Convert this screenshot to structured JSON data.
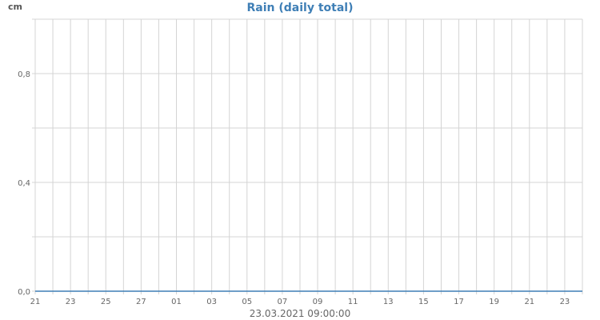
{
  "chart_data": {
    "type": "line",
    "title": "Rain (daily total)",
    "ylabel": "cm",
    "xlabel": "23.03.2021 09:00:00",
    "ylim": [
      0,
      1
    ],
    "yticks": [
      0,
      0.4,
      0.8
    ],
    "ytick_labels": [
      "0,0",
      "0,4",
      "0,8"
    ],
    "x_tick_labels": [
      "21",
      "23",
      "25",
      "27",
      "01",
      "03",
      "05",
      "07",
      "09",
      "11",
      "13",
      "15",
      "17",
      "19",
      "21",
      "23"
    ],
    "grid": true,
    "series": [
      {
        "color": "#3f7fb6",
        "x": [
          "21",
          "22",
          "23",
          "24",
          "25",
          "26",
          "27",
          "28",
          "01",
          "02",
          "03",
          "04",
          "05",
          "06",
          "07",
          "08",
          "09",
          "10",
          "11",
          "12",
          "13",
          "14",
          "15",
          "16",
          "17",
          "18",
          "19",
          "20",
          "21",
          "22",
          "23",
          "24"
        ],
        "values": [
          0,
          0,
          0,
          0,
          0,
          0,
          0,
          0,
          0,
          0,
          0,
          0,
          0,
          0,
          0,
          0,
          0,
          0,
          0,
          0,
          0,
          0,
          0,
          0,
          0,
          0,
          0,
          0,
          0,
          0,
          0,
          0
        ]
      }
    ]
  }
}
